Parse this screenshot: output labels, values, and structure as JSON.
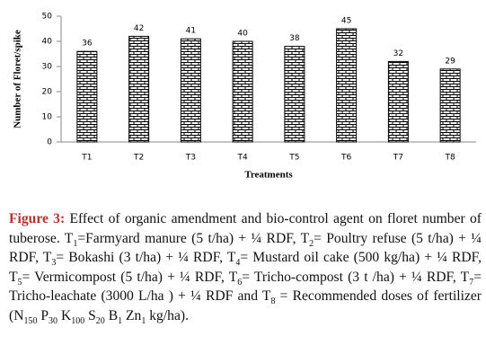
{
  "chart_data": {
    "type": "bar",
    "ylabel": "Number of Floret/spike",
    "xlabel": "Treatments",
    "categories": [
      "T1",
      "T2",
      "T3",
      "T4",
      "T5",
      "T6",
      "T7",
      "T8"
    ],
    "values": [
      36,
      42,
      41,
      40,
      38,
      45,
      32,
      29
    ],
    "color": "#000000",
    "ylim": [
      0,
      50
    ],
    "yticks": [
      0,
      10,
      20,
      30,
      40,
      50
    ],
    "grid": false
  },
  "caption": {
    "label": "Figure 3:",
    "segments": [
      " Effect of organic amendment and bio-control agent on floret number of tuberose. T",
      {
        "sub": "1"
      },
      "=Farmyard manure (5 t/ha) + ¼ RDF, T",
      {
        "sub": "2"
      },
      "= Poultry refuse (5 t/ha) + ¼ RDF, T",
      {
        "sub": "3"
      },
      "= Bokashi (3 t/ha) + ¼ RDF, T",
      {
        "sub": "4"
      },
      "= Mustard oil cake (500 kg/ha) + ¼ RDF, T",
      {
        "sub": "5"
      },
      "= Vermicompost (5 t/ha) + ¼ RDF, T",
      {
        "sub": "6"
      },
      "= Tricho-compost (3 t /ha) + ¼ RDF, T",
      {
        "sub": "7"
      },
      "= Tricho-leachate (3000 L/ha ) + ¼ RDF and T",
      {
        "sub": "8"
      },
      " = Recommended doses of fertilizer (N",
      {
        "sub": "150"
      },
      " P",
      {
        "sub": "30"
      },
      " K",
      {
        "sub": "100"
      },
      " S",
      {
        "sub": "20"
      },
      " B",
      {
        "sub": "1"
      },
      " Zn",
      {
        "sub": "1"
      },
      " kg/ha)."
    ]
  }
}
